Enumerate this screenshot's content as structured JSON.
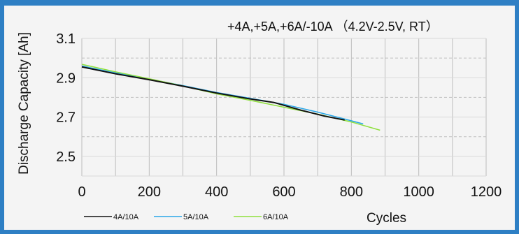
{
  "chart_data": {
    "type": "line",
    "title": "+4A,+5A,+6A/-10A （4.2V-2.5V, RT）",
    "xlabel": "Cycles",
    "ylabel": "Discharge Capacity [Ah]",
    "xlim": [
      0,
      1200
    ],
    "ylim": [
      2.4,
      3.1
    ],
    "xticks": [
      0,
      200,
      400,
      600,
      800,
      1000,
      1200
    ],
    "xtick_labels": [
      "0",
      "200",
      "400",
      "600",
      "800",
      "1000",
      "1200"
    ],
    "yticks": [
      2.5,
      2.7,
      2.9,
      3.1
    ],
    "ytick_labels": [
      "2.5",
      "2.7",
      "2.9",
      "3.1"
    ],
    "grid": true,
    "legend_position": "bottom",
    "series": [
      {
        "name": "4A/10A",
        "color": "#111111",
        "x": [
          0,
          100,
          200,
          300,
          400,
          500,
          570,
          650,
          720,
          780
        ],
        "y": [
          2.955,
          2.92,
          2.89,
          2.857,
          2.822,
          2.792,
          2.774,
          2.735,
          2.705,
          2.685
        ]
      },
      {
        "name": "5A/10A",
        "color": "#2aa7e8",
        "x": [
          0,
          100,
          200,
          300,
          400,
          500,
          600,
          700,
          780,
          835
        ],
        "y": [
          2.96,
          2.925,
          2.893,
          2.86,
          2.825,
          2.795,
          2.765,
          2.725,
          2.69,
          2.665
        ]
      },
      {
        "name": "6A/10A",
        "color": "#8ee03c",
        "x": [
          0,
          100,
          200,
          300,
          400,
          500,
          600,
          700,
          800,
          885
        ],
        "y": [
          2.968,
          2.93,
          2.895,
          2.858,
          2.818,
          2.785,
          2.75,
          2.715,
          2.675,
          2.633
        ]
      }
    ]
  }
}
